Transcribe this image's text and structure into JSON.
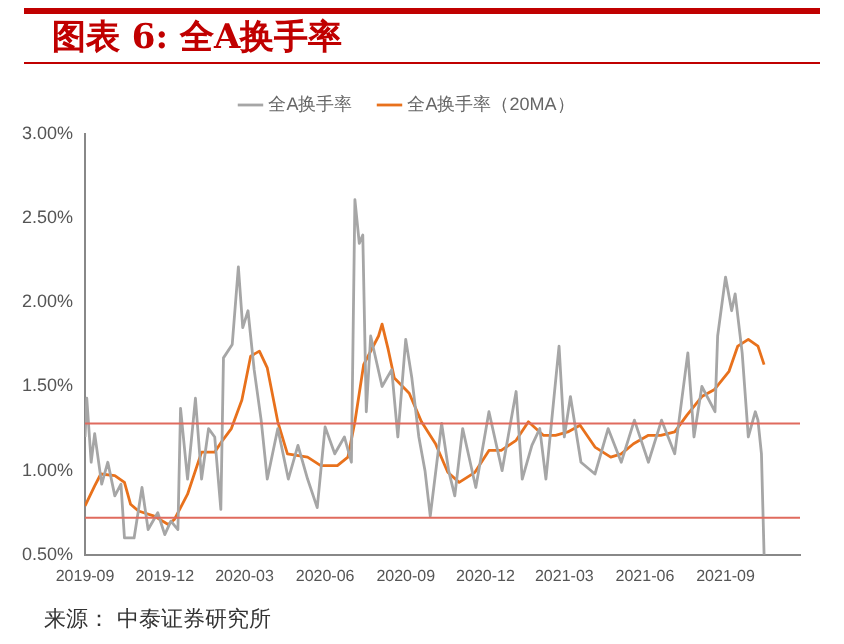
{
  "chart_data": {
    "type": "line",
    "title": "图表 6: 全A换手率",
    "legend": "top",
    "marker": "none",
    "line_style": "solid",
    "grid": false,
    "xlim": [
      "2019-09-01",
      "2021-11-25"
    ],
    "xticks": [
      "2019-09",
      "2019-12",
      "2020-03",
      "2020-06",
      "2020-09",
      "2020-12",
      "2021-03",
      "2021-06",
      "2021-09"
    ],
    "ylim": [
      0.5,
      3
    ],
    "yticks": [
      {
        "value": 0.5,
        "label": "0.50%"
      },
      {
        "value": 1,
        "label": "1.00%"
      },
      {
        "value": 1.5,
        "label": "1.50%"
      },
      {
        "value": 2,
        "label": "2.00%"
      },
      {
        "value": 2.5,
        "label": "2.50%"
      },
      {
        "value": 3,
        "label": "3.00%"
      }
    ],
    "series": [
      {
        "name": "全A换手率",
        "color": "#a6a6a6",
        "x": [
          "2019-09-01",
          "2019-09-03",
          "2019-09-08",
          "2019-09-12",
          "2019-09-20",
          "2019-09-27",
          "2019-10-05",
          "2019-10-12",
          "2019-10-16",
          "2019-10-27",
          "2019-11-05",
          "2019-11-12",
          "2019-11-23",
          "2019-12-01",
          "2019-12-08",
          "2019-12-16",
          "2019-12-19",
          "2019-12-27",
          "2020-01-05",
          "2020-01-12",
          "2020-01-20",
          "2020-01-27",
          "2020-02-03",
          "2020-02-06",
          "2020-02-16",
          "2020-02-23",
          "2020-02-28",
          "2020-03-05",
          "2020-03-12",
          "2020-03-20",
          "2020-03-27",
          "2020-04-08",
          "2020-04-20",
          "2020-05-01",
          "2020-05-12",
          "2020-05-23",
          "2020-06-01",
          "2020-06-12",
          "2020-06-23",
          "2020-07-01",
          "2020-07-05",
          "2020-07-10",
          "2020-07-14",
          "2020-07-18",
          "2020-07-23",
          "2020-08-05",
          "2020-08-16",
          "2020-08-23",
          "2020-09-01",
          "2020-09-08",
          "2020-09-16",
          "2020-09-23",
          "2020-09-29",
          "2020-10-12",
          "2020-10-20",
          "2020-10-27",
          "2020-11-05",
          "2020-11-20",
          "2020-12-05",
          "2020-12-20",
          "2021-01-05",
          "2021-01-12",
          "2021-01-23",
          "2021-02-01",
          "2021-02-08",
          "2021-02-23",
          "2021-03-01",
          "2021-03-08",
          "2021-03-20",
          "2021-04-05",
          "2021-04-20",
          "2021-05-05",
          "2021-05-20",
          "2021-06-05",
          "2021-06-20",
          "2021-07-05",
          "2021-07-20",
          "2021-07-27",
          "2021-08-05",
          "2021-08-20",
          "2021-08-23",
          "2021-09-01",
          "2021-09-08",
          "2021-09-12",
          "2021-09-20",
          "2021-09-27",
          "2021-10-05",
          "2021-10-08",
          "2021-10-12",
          "2021-10-15"
        ],
        "values": [
          1.2,
          1.43,
          1.05,
          1.22,
          0.92,
          1.05,
          0.85,
          0.92,
          0.6,
          0.6,
          0.9,
          0.65,
          0.75,
          0.62,
          0.7,
          0.65,
          1.37,
          0.95,
          1.43,
          0.95,
          1.25,
          1.2,
          0.77,
          1.67,
          1.75,
          2.21,
          1.85,
          1.95,
          1.6,
          1.3,
          0.95,
          1.25,
          0.95,
          1.15,
          0.95,
          0.78,
          1.26,
          1.1,
          1.2,
          1.05,
          2.61,
          2.35,
          2.4,
          1.35,
          1.8,
          1.5,
          1.6,
          1.2,
          1.78,
          1.55,
          1.2,
          1.0,
          0.73,
          1.28,
          1.0,
          0.85,
          1.25,
          0.9,
          1.35,
          1.0,
          1.47,
          0.95,
          1.15,
          1.25,
          0.95,
          1.74,
          1.2,
          1.44,
          1.05,
          0.98,
          1.25,
          1.05,
          1.3,
          1.05,
          1.3,
          1.1,
          1.7,
          1.2,
          1.5,
          1.35,
          1.8,
          2.15,
          1.95,
          2.05,
          1.7,
          1.2,
          1.35,
          1.3,
          1.1,
          0.5
        ]
      },
      {
        "name": "全A换手率（20MA）",
        "color": "#e8711c",
        "x": [
          "2019-09-01",
          "2019-09-12",
          "2019-09-19",
          "2019-10-05",
          "2019-10-16",
          "2019-10-23",
          "2019-11-01",
          "2019-11-19",
          "2019-12-05",
          "2019-12-12",
          "2019-12-27",
          "2020-01-12",
          "2020-01-27",
          "2020-02-05",
          "2020-02-15",
          "2020-02-27",
          "2020-03-08",
          "2020-03-18",
          "2020-03-27",
          "2020-04-08",
          "2020-04-19",
          "2020-05-12",
          "2020-05-27",
          "2020-06-15",
          "2020-06-27",
          "2020-07-05",
          "2020-07-15",
          "2020-08-01",
          "2020-08-05",
          "2020-08-12",
          "2020-08-19",
          "2020-09-05",
          "2020-09-19",
          "2020-10-05",
          "2020-10-19",
          "2020-11-01",
          "2020-11-19",
          "2020-12-05",
          "2020-12-19",
          "2021-01-05",
          "2021-01-19",
          "2021-02-05",
          "2021-02-19",
          "2021-03-05",
          "2021-03-19",
          "2021-04-05",
          "2021-04-23",
          "2021-05-05",
          "2021-05-19",
          "2021-06-05",
          "2021-06-19",
          "2021-07-05",
          "2021-07-19",
          "2021-08-05",
          "2021-08-19",
          "2021-09-05",
          "2021-09-15",
          "2021-09-27",
          "2021-10-08",
          "2021-10-15"
        ],
        "values": [
          0.79,
          0.91,
          0.98,
          0.97,
          0.93,
          0.8,
          0.76,
          0.73,
          0.68,
          0.71,
          0.86,
          1.11,
          1.11,
          1.18,
          1.25,
          1.42,
          1.68,
          1.71,
          1.61,
          1.29,
          1.1,
          1.08,
          1.03,
          1.03,
          1.08,
          1.29,
          1.63,
          1.8,
          1.87,
          1.72,
          1.55,
          1.46,
          1.29,
          1.16,
          0.99,
          0.93,
          0.99,
          1.12,
          1.12,
          1.18,
          1.29,
          1.21,
          1.21,
          1.23,
          1.27,
          1.14,
          1.08,
          1.1,
          1.16,
          1.21,
          1.21,
          1.23,
          1.33,
          1.44,
          1.48,
          1.59,
          1.74,
          1.78,
          1.74,
          1.63
        ]
      }
    ],
    "ref_lines": [
      {
        "axis": "y",
        "value": 1.28,
        "color": "#e06b5e"
      },
      {
        "axis": "y",
        "value": 0.72,
        "color": "#e06b5e"
      }
    ],
    "annotations": [
      "来源： 中泰证券研究所"
    ]
  }
}
